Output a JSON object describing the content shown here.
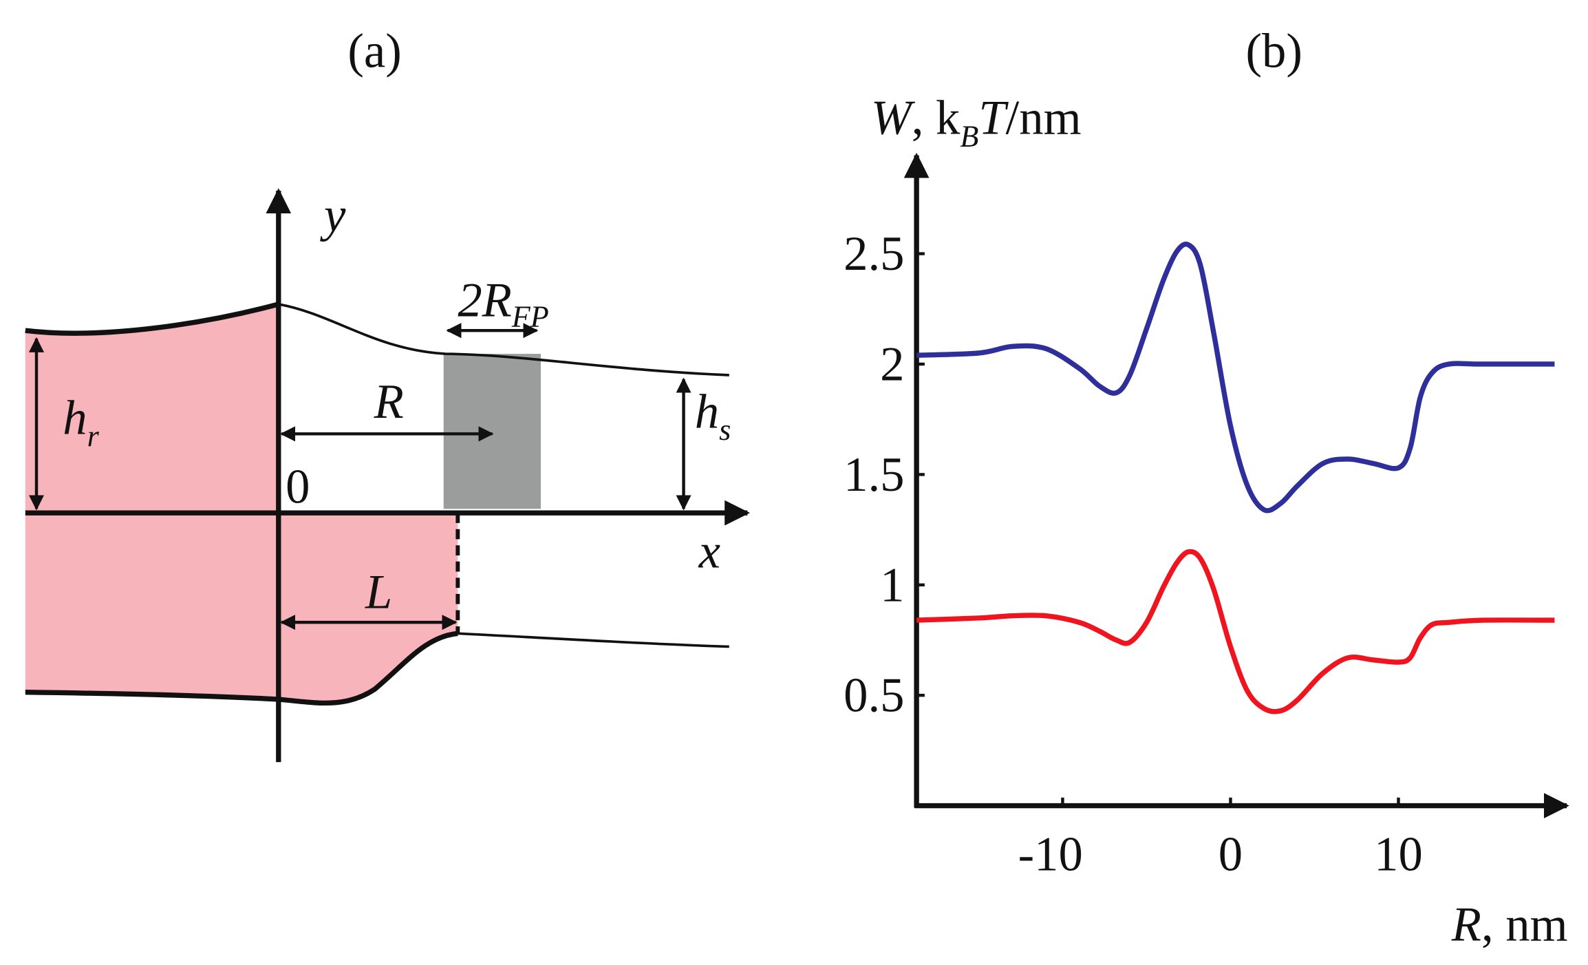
{
  "panel_a": {
    "label": "(a)",
    "y_axis": "y",
    "x_axis": "x",
    "origin": "0",
    "r": "R",
    "l": "L",
    "fp": [
      "2R",
      "FP"
    ],
    "hr": [
      "h",
      "r"
    ],
    "hs": [
      "h",
      "s"
    ]
  },
  "chart_data": {
    "type": "line",
    "title": "(b)",
    "ylabel": [
      "W",
      ", k",
      "B",
      "T",
      "/nm"
    ],
    "xlabel": [
      "R",
      ", nm"
    ],
    "x": [
      -18.7,
      -15,
      -13,
      -11,
      -9,
      -7.8,
      -6.8,
      -6,
      -5,
      -4,
      -3.2,
      -2.5,
      -1.8,
      -1,
      0,
      1,
      2,
      3,
      4,
      5.5,
      7,
      8.5,
      10,
      10.7,
      11.3,
      12,
      13,
      15,
      19.3
    ],
    "series": [
      {
        "color": "#2e2f9a",
        "values": [
          2.04,
          2.05,
          2.08,
          2.07,
          1.98,
          1.9,
          1.87,
          1.95,
          2.16,
          2.38,
          2.51,
          2.54,
          2.45,
          2.14,
          1.72,
          1.45,
          1.34,
          1.37,
          1.45,
          1.55,
          1.57,
          1.55,
          1.53,
          1.62,
          1.85,
          1.96,
          2.0,
          2.0,
          2.0
        ]
      },
      {
        "color": "#f0141e",
        "values": [
          0.84,
          0.85,
          0.86,
          0.86,
          0.83,
          0.79,
          0.75,
          0.74,
          0.83,
          0.99,
          1.1,
          1.15,
          1.12,
          0.98,
          0.72,
          0.52,
          0.44,
          0.43,
          0.48,
          0.6,
          0.67,
          0.66,
          0.65,
          0.67,
          0.76,
          0.82,
          0.83,
          0.84,
          0.84
        ]
      }
    ],
    "xlim": [
      -18.7,
      19.3
    ],
    "ylim": [
      0,
      2.9
    ],
    "xticks": [
      -10,
      0,
      10
    ],
    "yticks": [
      0.5,
      1,
      1.5,
      2,
      2.5
    ]
  }
}
